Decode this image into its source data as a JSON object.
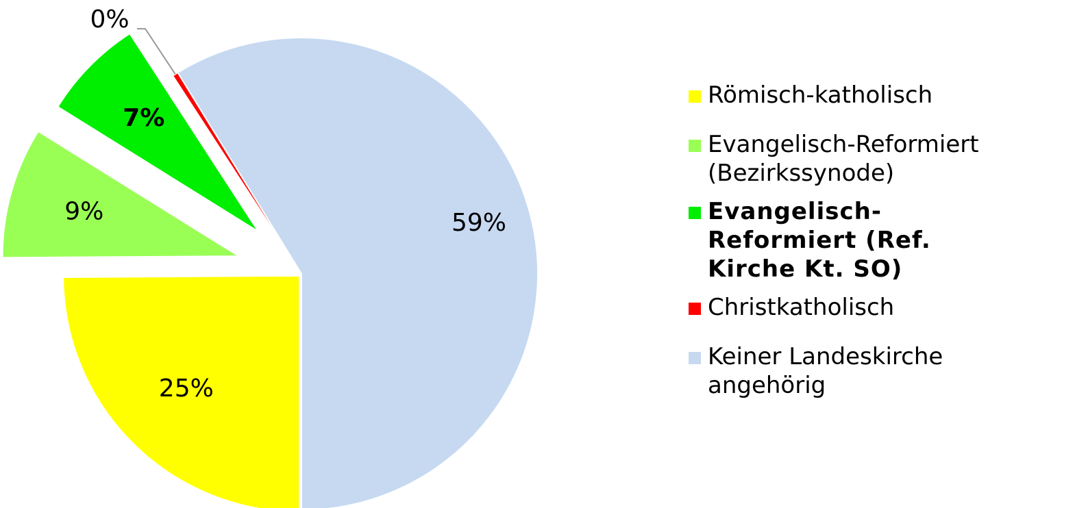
{
  "chart_data": {
    "type": "pie",
    "categories": [
      "Römisch-katholisch",
      "Evangelisch-Reformiert (Bezirkssynode)",
      "Evangelisch-Reformiert (Ref. Kirche Kt. SO)",
      "Christkatholisch",
      "Keiner Landeskirche angehörig"
    ],
    "values": [
      25,
      9,
      7,
      0.4,
      59
    ],
    "value_labels": [
      "25%",
      "9%",
      "7%",
      "0%",
      "59%"
    ],
    "colors": [
      "#ffff00",
      "#99ff55",
      "#00ee00",
      "#ff0000",
      "#c6d9f1"
    ],
    "legend": "right"
  }
}
